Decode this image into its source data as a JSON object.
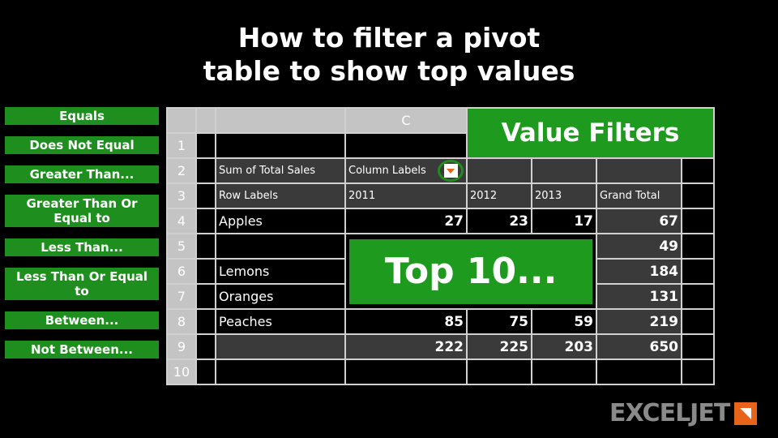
{
  "title_line1": "How to filter a pivot",
  "title_line2": "table to show top values",
  "sheet": {
    "col_c": "C",
    "row_numbers": [
      "1",
      "2",
      "3",
      "4",
      "5",
      "6",
      "7",
      "8",
      "9",
      "10"
    ],
    "sum_label": "Sum of Total Sales",
    "column_labels": "Column Labels",
    "row_labels": "Row Labels",
    "years": [
      "2011",
      "2012",
      "2013",
      "Grand Total"
    ],
    "rows": [
      {
        "label": "Apples",
        "values": [
          "27",
          "23",
          "17",
          "67"
        ]
      },
      {
        "label": "",
        "values": [
          "",
          "",
          "",
          "49"
        ]
      },
      {
        "label": "Lemons",
        "values": [
          "",
          "",
          "",
          "184"
        ]
      },
      {
        "label": "Oranges",
        "values": [
          "",
          "",
          "",
          "131"
        ]
      },
      {
        "label": "Peaches",
        "values": [
          "85",
          "75",
          "59",
          "219"
        ]
      },
      {
        "label": "",
        "values": [
          "222",
          "225",
          "203",
          "650"
        ]
      }
    ]
  },
  "menu": [
    "Equals",
    "Does Not Equal",
    "Greater Than...",
    "Greater Than Or Equal to",
    "Less Than...",
    "Less Than Or Equal to",
    "Between...",
    "Not Between..."
  ],
  "value_filters": "Value Filters",
  "top10": "Top 10...",
  "logo": "EXCELJET",
  "colors": {
    "green": "#1e9a1e",
    "orange": "#e8641a"
  }
}
